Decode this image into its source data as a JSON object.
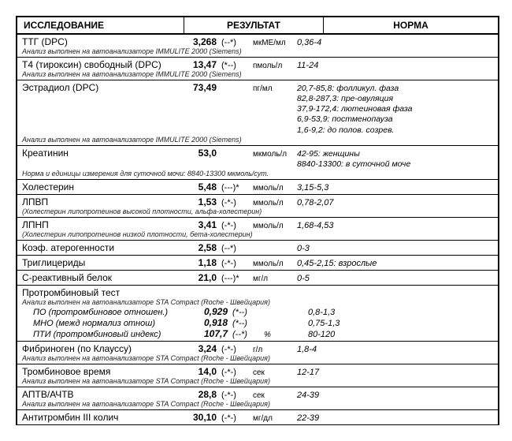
{
  "headers": {
    "test": "ИССЛЕДОВАНИЕ",
    "result": "РЕЗУЛЬТАТ",
    "norm": "НОРМА"
  },
  "note_immulite": "Анализ выполнен на автоанализаторе IMMULITE  2000   (Siemens)",
  "note_sta": "Анализ выполнен на автоанализаторе STA  Compact  (Roche  -  Швейцария)",
  "r1": {
    "name": "ТТГ (DPC)",
    "val": "3,268",
    "flag": "(--*)",
    "unit": "мкМЕ/мл",
    "norm": "0,36-4"
  },
  "r2": {
    "name": "Т4 (тироксин) свободный (DPC)",
    "val": "13,47",
    "flag": "(*--)",
    "unit": "пмоль/л",
    "norm": "11-24"
  },
  "r3": {
    "name": "Эстрадиол (DPC)",
    "val": "73,49",
    "unit": "пг/мл",
    "n1": "20,7-85,8: фолликул. фаза",
    "n2": "82,8-287,3: пре-овуляция",
    "n3": "37,9-172,4: лютеиновая фаза",
    "n4": "6,9-53,9: постменопауза",
    "n5": "1,6-9,2: до полов. созрев."
  },
  "r4": {
    "name": "Креатинин",
    "val": "53,0",
    "unit": "мкмоль/л",
    "n1": "42-95: женщины",
    "n2": "8840-13300: в суточной моче",
    "note": "Норма и единицы измерения для суточной мочи:  8840-13300 мкмоль/сут."
  },
  "r5": {
    "name": "Холестерин",
    "val": "5,48",
    "flag": "(---)*",
    "unit": "ммоль/л",
    "norm": "3,15-5,3"
  },
  "r6": {
    "name": "ЛПВП",
    "val": "1,53",
    "flag": "(-*-)",
    "unit": "ммоль/л",
    "norm": "0,78-2,07",
    "note": "(Холестерин липопротеинов высокой плотности,  альфа-холестерин)"
  },
  "r7": {
    "name": "ЛПНП",
    "val": "3,41",
    "flag": "(-*-)",
    "unit": "ммоль/л",
    "norm": "1,68-4,53",
    "note": "(Холестерин липопротеинов низкой плотности,  бета-холестерин)"
  },
  "r8": {
    "name": "Коэф. атерогенности",
    "val": "2,58",
    "flag": "(--*)",
    "norm": "0-3"
  },
  "r9": {
    "name": "Триглицериды",
    "val": "1,18",
    "flag": "(-*-)",
    "unit": "ммоль/л",
    "norm": "0,45-2,15: взрослые"
  },
  "r10": {
    "name": "С-реактивный белок",
    "val": "21,0",
    "flag": "(---)*",
    "unit": "мг/л",
    "norm": "0-5"
  },
  "r11": {
    "title": "Протромбиновый тест",
    "s1": {
      "name": "ПО (протромбиновое отношен.)",
      "val": "0,929",
      "flag": "(*--)",
      "norm": "0,8-1,3"
    },
    "s2": {
      "name": "МНО (межд нормализ отнош)",
      "val": "0,918",
      "flag": "(*--)",
      "norm": "0,75-1,3"
    },
    "s3": {
      "name": "ПТИ (протромбиновый индекс)",
      "val": "107,7",
      "flag": "(--*)",
      "unit": "%",
      "norm": "80-120"
    }
  },
  "r12": {
    "name": "Фибриноген (по Клауссу)",
    "val": "3,24",
    "flag": "(-*-)",
    "unit": "г/л",
    "norm": "1,8-4"
  },
  "r13": {
    "name": "Тромбиновое время",
    "val": "14,0",
    "flag": "(-*-)",
    "unit": "сек",
    "norm": "12-17"
  },
  "r14": {
    "name": "АПТВ/АЧТВ",
    "val": "28,8",
    "flag": "(-*-)",
    "unit": "сек",
    "norm": "24-39"
  },
  "r15": {
    "name": "Антитромбин III колич",
    "val": "30,10",
    "flag": "(-*-)",
    "unit": "мг/дл",
    "norm": "22-39"
  }
}
